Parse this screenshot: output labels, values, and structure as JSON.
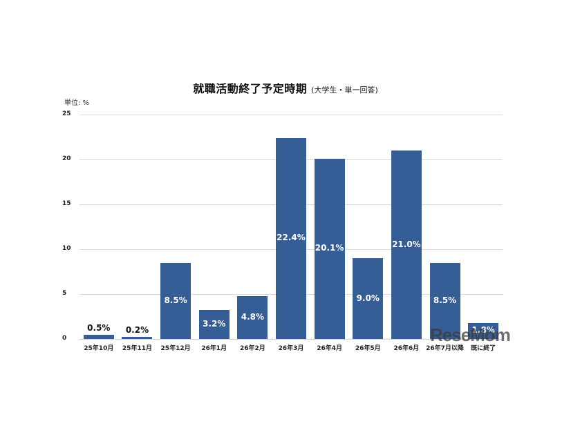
{
  "title": {
    "main": "就職活動終了予定時期",
    "sub": "(大学生・単一回答)"
  },
  "unit_label": "単位: %",
  "watermark": "ReseMom",
  "colors": {
    "bar": "#355d96",
    "grid": "#d9d9d9"
  },
  "chart_data": {
    "type": "bar",
    "title": "就職活動終了予定時期 (大学生・単一回答)",
    "xlabel": "",
    "ylabel": "単位: %",
    "ylim": [
      0,
      25
    ],
    "yticks": [
      0,
      5,
      10,
      15,
      20,
      25
    ],
    "grid": true,
    "legend": null,
    "categories": [
      "25年10月",
      "25年11月",
      "25年12月",
      "26年1月",
      "26年2月",
      "26年3月",
      "26年4月",
      "26年5月",
      "26年6月",
      "26年7月以降",
      "既に終了"
    ],
    "values": [
      0.5,
      0.2,
      8.5,
      3.2,
      4.8,
      22.4,
      20.1,
      9.0,
      21.0,
      8.5,
      1.8
    ],
    "value_labels": [
      "0.5%",
      "0.2%",
      "8.5%",
      "3.2%",
      "4.8%",
      "22.4%",
      "20.1%",
      "9.0%",
      "21.0%",
      "8.5%",
      "1.8%"
    ]
  }
}
